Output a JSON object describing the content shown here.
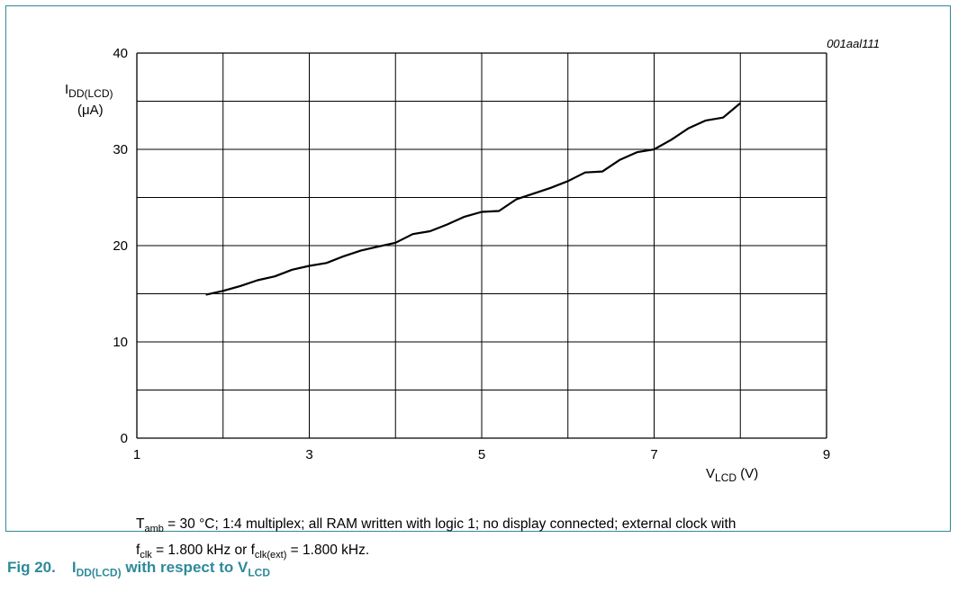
{
  "chart_data": {
    "type": "line",
    "code": "001aal111",
    "ylabel_main": "I",
    "ylabel_sub": "DD(LCD)",
    "ylabel_unit": "(μA)",
    "xlabel_main": "V",
    "xlabel_sub": "LCD",
    "xlabel_unit": " (V)",
    "xlim": [
      1,
      9
    ],
    "ylim": [
      0,
      40
    ],
    "x_ticks": [
      "1",
      "3",
      "5",
      "7",
      "9"
    ],
    "y_ticks": [
      "0",
      "10",
      "20",
      "30",
      "40"
    ],
    "grid": true,
    "series": [
      {
        "x": [
          1.8,
          2.0,
          2.2,
          2.4,
          2.6,
          2.8,
          3.0,
          3.2,
          3.4,
          3.6,
          3.8,
          4.0,
          4.2,
          4.4,
          4.6,
          4.8,
          5.0,
          5.2,
          5.4,
          5.6,
          5.8,
          6.0,
          6.2,
          6.4,
          6.6,
          6.8,
          7.0,
          7.2,
          7.4,
          7.6,
          7.8,
          8.0
        ],
        "y": [
          14.9,
          15.3,
          15.8,
          16.4,
          16.8,
          17.5,
          17.9,
          18.2,
          18.9,
          19.5,
          19.9,
          20.3,
          21.2,
          21.5,
          22.2,
          23.0,
          23.5,
          23.6,
          24.8,
          25.4,
          26.0,
          26.7,
          27.6,
          27.7,
          28.9,
          29.7,
          30.0,
          31.0,
          32.2,
          33.0,
          33.3,
          34.8
        ]
      }
    ]
  },
  "note": {
    "t": "T",
    "t_sub": "amb",
    "line1_rest": " = 30 °C; 1:4 multiplex; all RAM written with logic 1; no display connected; external clock with",
    "f1": "f",
    "f1_sub": "clk",
    "mid": " = 1.800 kHz or f",
    "f2_sub": "clk(ext)",
    "end": " = 1.800 kHz."
  },
  "caption": {
    "number": "Fig 20.",
    "i": "I",
    "i_sub": "DD(LCD)",
    "mid": " with respect to V",
    "v_sub": "LCD"
  },
  "colors": {
    "accent": "#2e8a9a",
    "line": "#000000",
    "grid": "#000000"
  }
}
